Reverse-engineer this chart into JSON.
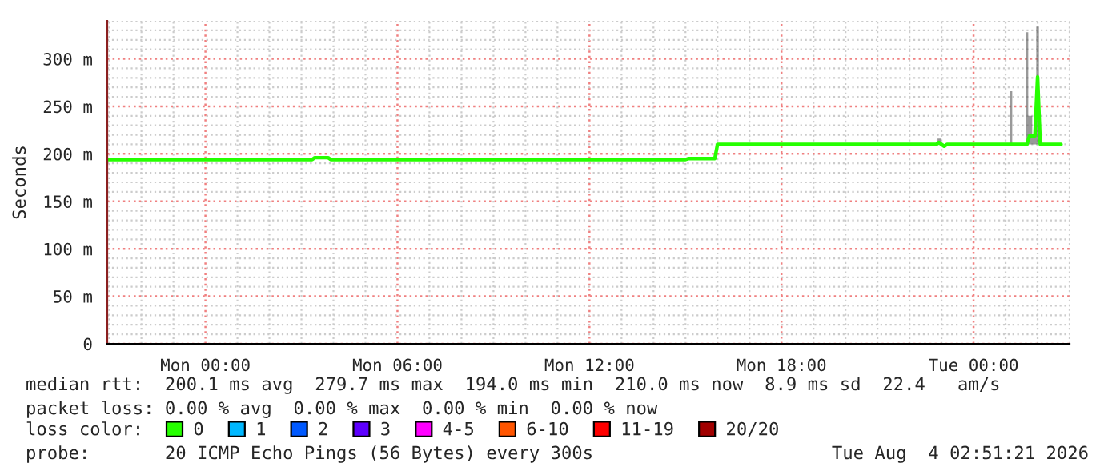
{
  "chart_data": {
    "type": "line",
    "ylabel": "Seconds",
    "xlim": [
      "2026-08-02T20:56",
      "2026-08-04T03:00"
    ],
    "xticks": [
      {
        "value": "2026-08-03T00:00",
        "label": "Mon 00:00"
      },
      {
        "value": "2026-08-03T06:00",
        "label": "Mon 06:00"
      },
      {
        "value": "2026-08-03T12:00",
        "label": "Mon 12:00"
      },
      {
        "value": "2026-08-03T18:00",
        "label": "Mon 18:00"
      },
      {
        "value": "2026-08-04T00:00",
        "label": "Tue 00:00"
      }
    ],
    "ylim": [
      0,
      340
    ],
    "yticks": [
      0,
      {
        "value": 50,
        "label": "50 m"
      },
      {
        "value": 100,
        "label": "100 m"
      },
      {
        "value": 150,
        "label": "150 m"
      },
      {
        "value": 200,
        "label": "200 m"
      },
      {
        "value": 250,
        "label": "250 m"
      },
      {
        "value": 300,
        "label": "300 m"
      }
    ],
    "grid": true,
    "legend": "bottom",
    "legend_title": "loss color:",
    "series": [
      {
        "name": "0",
        "color": "#26ff00",
        "x": [
          "2026-08-02T20:56",
          "2026-08-03T03:20",
          "2026-08-03T03:25",
          "2026-08-03T03:50",
          "2026-08-03T03:55",
          "2026-08-03T15:00",
          "2026-08-03T15:05",
          "2026-08-03T15:55",
          "2026-08-03T16:00",
          "2026-08-03T22:50",
          "2026-08-03T22:55",
          "2026-08-03T23:05",
          "2026-08-03T23:10",
          "2026-08-04T01:05",
          "2026-08-04T01:10",
          "2026-08-04T01:15",
          "2026-08-04T01:35",
          "2026-08-04T01:40",
          "2026-08-04T01:45",
          "2026-08-04T01:55",
          "2026-08-04T02:00",
          "2026-08-04T02:05",
          "2026-08-04T02:44"
        ],
        "values": [
          194,
          194,
          196,
          196,
          194,
          194,
          195,
          195,
          210,
          210,
          212,
          208,
          210,
          210,
          210,
          210,
          210,
          210,
          219,
          219,
          281,
          210,
          210
        ],
        "lower": [
          194,
          194,
          196,
          196,
          194,
          194,
          195,
          195,
          210,
          210,
          212,
          208,
          210,
          210,
          210,
          210,
          210,
          210,
          210,
          210,
          210,
          210,
          210
        ],
        "upper": [
          194,
          194,
          196,
          196,
          194,
          194,
          195,
          195,
          210,
          210,
          216,
          208,
          210,
          210,
          266,
          210,
          210,
          328,
          240,
          219,
          334,
          210,
          210
        ]
      },
      {
        "name": "1",
        "color": "#00b8ff"
      },
      {
        "name": "2",
        "color": "#0059ff"
      },
      {
        "name": "3",
        "color": "#5e00ff"
      },
      {
        "name": "4-5",
        "color": "#ff00ff"
      },
      {
        "name": "6-10",
        "color": "#ff5500"
      },
      {
        "name": "11-19",
        "color": "#ff0000"
      },
      {
        "name": "20/20",
        "color": "#a10000"
      }
    ],
    "annotations": [
      "median rtt:  200.1 ms avg  279.7 ms max  194.0 ms min  210.0 ms now  8.9 ms sd  22.4   am/s",
      "packet loss: 0.00 % avg  0.00 % max  0.00 % min  0.00 % now",
      "probe:       20 ICMP Echo Pings (56 Bytes) every 300s",
      "Tue Aug  4 02:51:21 2026"
    ]
  }
}
